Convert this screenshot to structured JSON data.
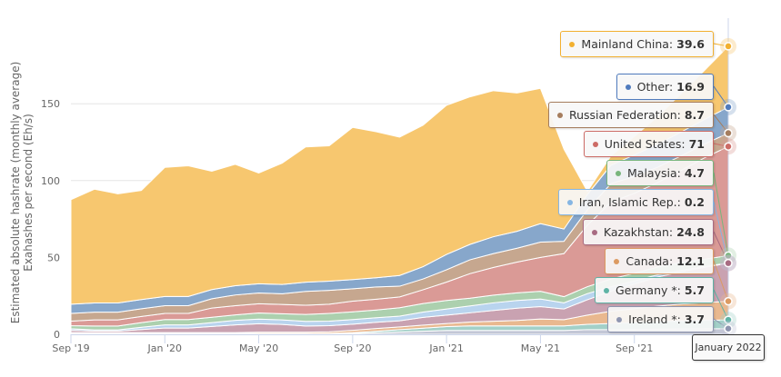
{
  "chart_data": {
    "type": "area",
    "stacked": true,
    "title": "",
    "ylabel_line1": "Estimated absolute hashrate (monthly average)",
    "ylabel_line2": "Exahashes per second (Eh/s)",
    "ylim": [
      0,
      190
    ],
    "yticks": [
      "0",
      "50",
      "100",
      "150"
    ],
    "ytick_values": [
      0,
      50,
      100,
      150
    ],
    "x": [
      "2019-09",
      "2019-10",
      "2019-11",
      "2019-12",
      "2020-01",
      "2020-02",
      "2020-03",
      "2020-04",
      "2020-05",
      "2020-06",
      "2020-07",
      "2020-08",
      "2020-09",
      "2020-10",
      "2020-11",
      "2020-12",
      "2021-01",
      "2021-02",
      "2021-03",
      "2021-04",
      "2021-05",
      "2021-06",
      "2021-07",
      "2021-08",
      "2021-09",
      "2021-10",
      "2021-11",
      "2021-12",
      "2022-01"
    ],
    "xticks": [
      {
        "label": "Sep '19",
        "index": 0
      },
      {
        "label": "Jan '20",
        "index": 4
      },
      {
        "label": "May '20",
        "index": 8
      },
      {
        "label": "Sep '20",
        "index": 12
      },
      {
        "label": "Jan '21",
        "index": 16
      },
      {
        "label": "May '21",
        "index": 20
      },
      {
        "label": "Sep '21",
        "index": 24
      }
    ],
    "series": [
      {
        "name": "Ireland *",
        "color": "#c3c7d6",
        "line": "#8e95b0",
        "values": [
          0.3,
          0.3,
          0.3,
          0.3,
          0.3,
          0.3,
          0.3,
          0.3,
          0.3,
          0.3,
          0.3,
          0.3,
          0.5,
          1,
          1.5,
          2,
          2.5,
          2.5,
          2.5,
          2.5,
          2.5,
          2.5,
          3,
          3,
          3.2,
          3.3,
          3.5,
          3.6,
          3.7
        ]
      },
      {
        "name": "Germany *",
        "color": "#a3d0c8",
        "line": "#5fb3a5",
        "values": [
          0.3,
          0.3,
          0.3,
          0.3,
          0.3,
          0.3,
          0.3,
          0.3,
          0.3,
          0.3,
          0.3,
          0.3,
          0.6,
          1,
          1.5,
          2,
          2.5,
          3,
          3,
          3,
          3,
          3,
          3.5,
          4,
          4.5,
          5,
          5.2,
          5.5,
          5.7
        ]
      },
      {
        "name": "Canada",
        "color": "#e9b88f",
        "line": "#dc9a62",
        "values": [
          0.5,
          0.5,
          0.5,
          0.5,
          0.5,
          0.5,
          0.5,
          0.5,
          0.8,
          0.8,
          0.8,
          1,
          1.5,
          1.8,
          1.8,
          2,
          2,
          2.5,
          3,
          3.5,
          4.5,
          4,
          6,
          8,
          9,
          10,
          11,
          11.5,
          12.1
        ]
      },
      {
        "name": "Kazakhstan",
        "color": "#c9a2b1",
        "line": "#a86b82",
        "values": [
          1.5,
          1,
          1,
          2,
          3,
          3,
          4,
          5,
          5.5,
          5,
          4,
          4,
          4,
          4,
          4,
          5,
          5.5,
          6,
          7,
          8,
          8,
          7,
          10,
          13,
          16,
          19,
          21,
          23,
          24.8
        ]
      },
      {
        "name": "Iran, Islamic Rep.",
        "color": "#b9d4ee",
        "line": "#86b6e3",
        "values": [
          1,
          0.8,
          0.8,
          1.5,
          2,
          2,
          2.5,
          3,
          3,
          3,
          3,
          3,
          3,
          3,
          3,
          3.5,
          4,
          4.5,
          5,
          5,
          5,
          4,
          4,
          3,
          2,
          1.5,
          1,
          0.5,
          0.2
        ]
      },
      {
        "name": "Malaysia",
        "color": "#acd0ae",
        "line": "#78b57c",
        "values": [
          2,
          2.5,
          2.5,
          3,
          3.5,
          3.5,
          3.5,
          3.5,
          4,
          4,
          4.5,
          5,
          5,
          5,
          5.5,
          5.5,
          5.5,
          5,
          5,
          5,
          5,
          4,
          4.5,
          5,
          5,
          5,
          5,
          4.8,
          4.7
        ]
      },
      {
        "name": "United States",
        "color": "#da9a96",
        "line": "#cc6b66",
        "values": [
          3,
          4,
          4,
          4,
          4,
          4,
          6,
          6,
          6,
          6,
          6,
          6,
          7,
          7,
          7,
          9,
          12,
          16,
          18,
          20,
          22,
          28,
          40,
          50,
          52,
          55,
          60,
          66,
          71
        ]
      },
      {
        "name": "Russian Federation",
        "color": "#c6a78f",
        "line": "#a57d5e",
        "values": [
          5,
          5,
          5,
          5,
          5,
          5,
          6,
          7,
          7,
          7,
          9,
          9,
          8,
          8,
          7,
          7,
          8,
          9,
          9,
          9,
          10,
          8,
          10,
          12,
          11,
          10,
          9.5,
          9,
          8.7
        ]
      },
      {
        "name": "Other",
        "color": "#87a7cb",
        "line": "#4f7bbd",
        "values": [
          6,
          6,
          6,
          6,
          6,
          6,
          6,
          6,
          6,
          6,
          6,
          6,
          6,
          6,
          7,
          8,
          10,
          10,
          11,
          11,
          12,
          8,
          10,
          12,
          14,
          15,
          15.5,
          16,
          16.9
        ]
      },
      {
        "name": "Mainland China",
        "color": "#f7c76f",
        "line": "#f2b030",
        "values": [
          68,
          74,
          71,
          71,
          84,
          85,
          77,
          79,
          72,
          79,
          88,
          88,
          99,
          95,
          90,
          92,
          97,
          96,
          95,
          90,
          88,
          52,
          2,
          6,
          12,
          18,
          25,
          32,
          39.6
        ]
      }
    ],
    "tooltip": {
      "date": "January 2022",
      "items": [
        {
          "label": "Mainland China:",
          "value": "39.6",
          "series": 9
        },
        {
          "label": "Other:",
          "value": "16.9",
          "series": 8
        },
        {
          "label": "Russian Federation:",
          "value": "8.7",
          "series": 7
        },
        {
          "label": "United States:",
          "value": "71",
          "series": 6
        },
        {
          "label": "Malaysia:",
          "value": "4.7",
          "series": 5
        },
        {
          "label": "Iran, Islamic Rep.:",
          "value": "0.2",
          "series": 4
        },
        {
          "label": "Kazakhstan:",
          "value": "24.8",
          "series": 3
        },
        {
          "label": "Canada:",
          "value": "12.1",
          "series": 2
        },
        {
          "label": "Germany *:",
          "value": "5.7",
          "series": 1
        },
        {
          "label": "Ireland *:",
          "value": "3.7",
          "series": 0
        }
      ]
    }
  }
}
